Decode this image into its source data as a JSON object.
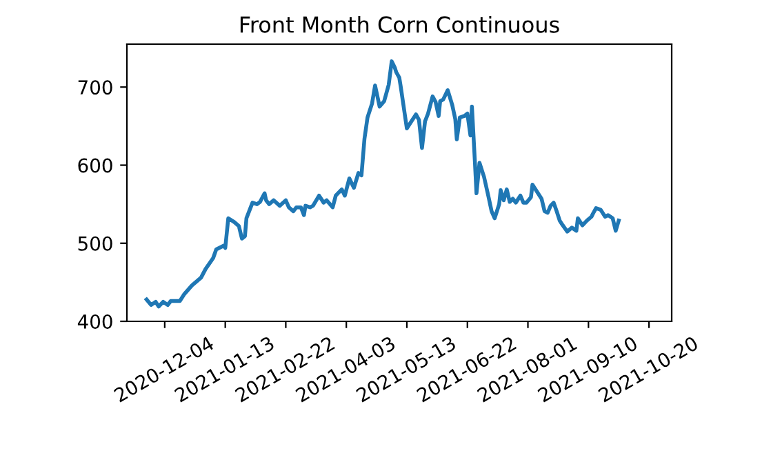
{
  "chart_data": {
    "type": "line",
    "title": "Front Month Corn Continuous",
    "x": [
      "2020-11-22",
      "2020-11-25",
      "2020-11-28",
      "2020-11-30",
      "2020-12-03",
      "2020-12-06",
      "2020-12-08",
      "2020-12-14",
      "2020-12-17",
      "2020-12-22",
      "2020-12-28",
      "2020-12-31",
      "2021-01-05",
      "2021-01-07",
      "2021-01-12",
      "2021-01-13",
      "2021-01-15",
      "2021-01-19",
      "2021-01-22",
      "2021-01-24",
      "2021-01-26",
      "2021-01-27",
      "2021-01-31",
      "2021-02-03",
      "2021-02-05",
      "2021-02-08",
      "2021-02-09",
      "2021-02-11",
      "2021-02-14",
      "2021-02-18",
      "2021-02-22",
      "2021-02-24",
      "2021-02-27",
      "2021-03-01",
      "2021-03-04",
      "2021-03-06",
      "2021-03-07",
      "2021-03-10",
      "2021-03-12",
      "2021-03-16",
      "2021-03-19",
      "2021-03-21",
      "2021-03-25",
      "2021-03-27",
      "2021-03-31",
      "2021-04-02",
      "2021-04-05",
      "2021-04-08",
      "2021-04-11",
      "2021-04-13",
      "2021-04-15",
      "2021-04-17",
      "2021-04-20",
      "2021-04-22",
      "2021-04-25",
      "2021-04-28",
      "2021-05-01",
      "2021-05-03",
      "2021-05-05",
      "2021-05-06",
      "2021-05-08",
      "2021-05-09",
      "2021-05-13",
      "2021-05-16",
      "2021-05-19",
      "2021-05-21",
      "2021-05-23",
      "2021-05-25",
      "2021-05-27",
      "2021-05-30",
      "2021-06-01",
      "2021-06-03",
      "2021-06-04",
      "2021-06-06",
      "2021-06-09",
      "2021-06-12",
      "2021-06-14",
      "2021-06-15",
      "2021-06-17",
      "2021-06-20",
      "2021-06-22",
      "2021-06-24",
      "2021-06-25",
      "2021-06-27",
      "2021-06-28",
      "2021-06-30",
      "2021-07-03",
      "2021-07-06",
      "2021-07-08",
      "2021-07-10",
      "2021-07-13",
      "2021-07-14",
      "2021-07-16",
      "2021-07-18",
      "2021-07-20",
      "2021-07-22",
      "2021-07-24",
      "2021-07-27",
      "2021-07-29",
      "2021-07-31",
      "2021-08-03",
      "2021-08-04",
      "2021-08-07",
      "2021-08-10",
      "2021-08-12",
      "2021-08-14",
      "2021-08-16",
      "2021-08-18",
      "2021-08-20",
      "2021-08-22",
      "2021-08-24",
      "2021-08-27",
      "2021-08-30",
      "2021-09-02",
      "2021-09-03",
      "2021-09-06",
      "2021-09-09",
      "2021-09-12",
      "2021-09-13",
      "2021-09-15",
      "2021-09-18",
      "2021-09-21",
      "2021-09-23",
      "2021-09-26",
      "2021-09-28",
      "2021-09-30"
    ],
    "series": [
      {
        "color": "#1f77b4",
        "values": [
          428,
          421,
          425,
          419,
          425,
          421,
          426,
          426,
          435,
          446,
          456,
          467,
          481,
          492,
          497,
          494,
          532,
          527,
          522,
          506,
          509,
          532,
          552,
          550,
          553,
          564,
          555,
          550,
          555,
          548,
          555,
          546,
          541,
          546,
          546,
          536,
          548,
          546,
          548,
          561,
          552,
          555,
          546,
          561,
          569,
          561,
          583,
          571,
          590,
          587,
          634,
          661,
          679,
          702,
          675,
          682,
          703,
          733,
          725,
          719,
          712,
          700,
          647,
          656,
          665,
          658,
          622,
          656,
          666,
          688,
          681,
          663,
          682,
          684,
          696,
          677,
          659,
          633,
          661,
          663,
          666,
          638,
          675,
          603,
          564,
          603,
          585,
          559,
          541,
          532,
          550,
          568,
          555,
          569,
          553,
          557,
          552,
          561,
          552,
          552,
          559,
          575,
          566,
          557,
          541,
          539,
          548,
          552,
          541,
          529,
          523,
          515,
          520,
          516,
          532,
          523,
          529,
          534,
          538,
          545,
          543,
          534,
          536,
          532,
          516,
          529
        ]
      }
    ],
    "xlim": [
      "2020-11-09",
      "2021-11-04"
    ],
    "xticks": [
      "2020-12-04",
      "2021-01-13",
      "2021-02-22",
      "2021-04-03",
      "2021-05-13",
      "2021-06-22",
      "2021-08-01",
      "2021-09-10",
      "2021-10-20"
    ],
    "ylim": [
      400,
      755
    ],
    "yticks": [
      400,
      500,
      600,
      700
    ],
    "grid": false,
    "marker": "none",
    "line_style": "solid"
  }
}
